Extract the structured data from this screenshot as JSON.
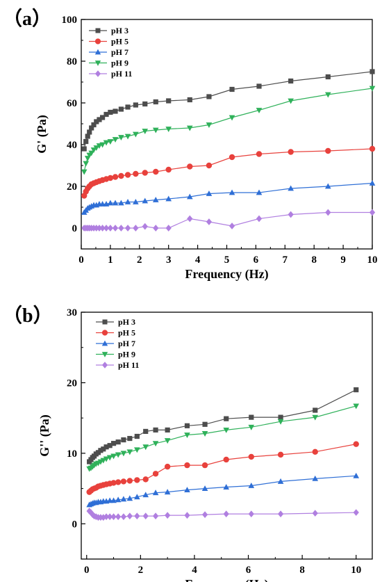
{
  "chart_data": [
    {
      "type": "line",
      "panel_label": "（a）",
      "xlabel": "Frequency (Hz)",
      "ylabel": "G' (Pa)",
      "xlim": [
        0,
        10
      ],
      "ylim": [
        -10,
        100
      ],
      "xticks": [
        "0",
        "1",
        "2",
        "3",
        "4",
        "5",
        "6",
        "7",
        "8",
        "9",
        "10"
      ],
      "yticks": [
        "0",
        "20",
        "40",
        "60",
        "80",
        "100"
      ],
      "legend_position": "top-left",
      "grid": false,
      "series": [
        {
          "name": "pH 3",
          "color": "#4d4d4d",
          "marker": "square",
          "x": [
            0.1,
            0.16,
            0.22,
            0.28,
            0.35,
            0.43,
            0.52,
            0.62,
            0.73,
            0.86,
            1.0,
            1.17,
            1.37,
            1.6,
            1.87,
            2.19,
            2.56,
            3.0,
            3.73,
            4.39,
            5.18,
            6.11,
            7.2,
            8.48,
            10.0
          ],
          "y": [
            38.0,
            41.5,
            44.0,
            46.0,
            48.0,
            49.5,
            51.0,
            52.0,
            53.0,
            54.5,
            55.5,
            56.0,
            57.0,
            58.0,
            59.0,
            59.5,
            60.5,
            61.0,
            61.5,
            63.0,
            66.5,
            68.0,
            70.5,
            72.5,
            75.0
          ]
        },
        {
          "name": "pH 5",
          "color": "#e8413c",
          "marker": "circle",
          "x": [
            0.1,
            0.16,
            0.22,
            0.28,
            0.35,
            0.43,
            0.52,
            0.62,
            0.73,
            0.86,
            1.0,
            1.17,
            1.37,
            1.6,
            1.87,
            2.19,
            2.56,
            3.0,
            3.73,
            4.39,
            5.18,
            6.11,
            7.2,
            8.48,
            10.0
          ],
          "y": [
            15.5,
            17.5,
            19.0,
            20.0,
            21.0,
            21.5,
            22.0,
            22.5,
            23.0,
            23.5,
            24.0,
            24.5,
            25.0,
            25.5,
            26.0,
            26.5,
            27.0,
            28.0,
            29.5,
            30.0,
            34.0,
            35.5,
            36.5,
            37.0,
            38.0
          ]
        },
        {
          "name": "pH 7",
          "color": "#2f6fd6",
          "marker": "triangle-up",
          "x": [
            0.1,
            0.16,
            0.22,
            0.28,
            0.35,
            0.43,
            0.52,
            0.62,
            0.73,
            0.86,
            1.0,
            1.17,
            1.37,
            1.6,
            1.87,
            2.19,
            2.56,
            3.0,
            3.73,
            4.39,
            5.18,
            6.11,
            7.2,
            8.48,
            10.0
          ],
          "y": [
            7.5,
            8.5,
            9.5,
            10.0,
            10.5,
            11.0,
            11.0,
            11.5,
            11.5,
            11.5,
            12.0,
            12.0,
            12.0,
            12.5,
            12.5,
            13.0,
            13.5,
            14.0,
            15.0,
            16.5,
            17.0,
            17.0,
            19.0,
            20.0,
            21.5
          ]
        },
        {
          "name": "pH 9",
          "color": "#2fb15a",
          "marker": "triangle-down",
          "x": [
            0.1,
            0.16,
            0.22,
            0.28,
            0.35,
            0.43,
            0.52,
            0.62,
            0.73,
            0.86,
            1.0,
            1.17,
            1.37,
            1.6,
            1.87,
            2.19,
            2.56,
            3.0,
            3.73,
            4.39,
            5.18,
            6.11,
            7.2,
            8.48,
            10.0
          ],
          "y": [
            27.0,
            31.0,
            33.5,
            35.0,
            36.0,
            37.5,
            38.5,
            39.5,
            40.0,
            41.0,
            41.5,
            42.5,
            43.5,
            44.0,
            45.0,
            46.5,
            47.0,
            47.5,
            48.0,
            49.5,
            53.0,
            56.5,
            61.0,
            64.0,
            67.0
          ]
        },
        {
          "name": "pH 11",
          "color": "#b07fe0",
          "marker": "diamond",
          "x": [
            0.1,
            0.16,
            0.22,
            0.28,
            0.35,
            0.43,
            0.52,
            0.62,
            0.73,
            0.86,
            1.0,
            1.17,
            1.37,
            1.6,
            1.87,
            2.19,
            2.56,
            3.0,
            3.73,
            4.39,
            5.18,
            6.11,
            7.2,
            8.48,
            10.0
          ],
          "y": [
            0.0,
            0.0,
            0.0,
            0.0,
            0.0,
            0.0,
            0.0,
            0.0,
            0.0,
            0.0,
            0.0,
            0.0,
            0.0,
            0.0,
            0.0,
            0.8,
            0.0,
            0.0,
            4.5,
            3.0,
            1.0,
            4.5,
            6.5,
            7.5,
            7.5
          ]
        }
      ]
    },
    {
      "type": "line",
      "panel_label": "（b）",
      "xlabel": "Frequency (Hz)",
      "ylabel": "G'' (Pa)",
      "xlim": [
        -0.2,
        10.6
      ],
      "ylim": [
        -5,
        30
      ],
      "xticks": [
        "0",
        "2",
        "4",
        "6",
        "8",
        "10"
      ],
      "yticks": [
        "0",
        "10",
        "20",
        "30"
      ],
      "legend_position": "top-left",
      "grid": false,
      "series": [
        {
          "name": "pH 3",
          "color": "#4d4d4d",
          "marker": "square",
          "x": [
            0.1,
            0.16,
            0.22,
            0.28,
            0.35,
            0.43,
            0.52,
            0.62,
            0.73,
            0.86,
            1.0,
            1.17,
            1.37,
            1.6,
            1.87,
            2.19,
            2.56,
            3.0,
            3.73,
            4.39,
            5.18,
            6.11,
            7.2,
            8.48,
            10.0
          ],
          "y": [
            8.8,
            9.1,
            9.4,
            9.6,
            9.9,
            10.1,
            10.4,
            10.6,
            10.9,
            11.1,
            11.4,
            11.6,
            11.9,
            12.1,
            12.4,
            13.1,
            13.3,
            13.3,
            13.9,
            14.1,
            14.9,
            15.1,
            15.1,
            16.1,
            19.0
          ]
        },
        {
          "name": "pH 5",
          "color": "#e8413c",
          "marker": "circle",
          "x": [
            0.1,
            0.16,
            0.22,
            0.28,
            0.35,
            0.43,
            0.52,
            0.62,
            0.73,
            0.86,
            1.0,
            1.17,
            1.37,
            1.6,
            1.87,
            2.19,
            2.56,
            3.0,
            3.73,
            4.39,
            5.18,
            6.11,
            7.2,
            8.48,
            10.0
          ],
          "y": [
            4.5,
            4.7,
            4.9,
            5.0,
            5.1,
            5.3,
            5.4,
            5.5,
            5.6,
            5.7,
            5.8,
            5.9,
            6.0,
            6.1,
            6.2,
            6.3,
            7.1,
            8.1,
            8.3,
            8.3,
            9.1,
            9.5,
            9.8,
            10.2,
            11.3
          ]
        },
        {
          "name": "pH 7",
          "color": "#2f6fd6",
          "marker": "triangle-up",
          "x": [
            0.1,
            0.16,
            0.22,
            0.28,
            0.35,
            0.43,
            0.52,
            0.62,
            0.73,
            0.86,
            1.0,
            1.17,
            1.37,
            1.6,
            1.87,
            2.19,
            2.56,
            3.0,
            3.73,
            4.39,
            5.18,
            6.11,
            7.2,
            8.48,
            10.0
          ],
          "y": [
            2.7,
            2.8,
            2.9,
            3.0,
            3.0,
            3.1,
            3.1,
            3.2,
            3.2,
            3.3,
            3.3,
            3.4,
            3.5,
            3.6,
            3.8,
            4.1,
            4.4,
            4.5,
            4.8,
            5.0,
            5.2,
            5.4,
            6.0,
            6.4,
            6.8
          ]
        },
        {
          "name": "pH 9",
          "color": "#2fb15a",
          "marker": "triangle-down",
          "x": [
            0.1,
            0.16,
            0.22,
            0.28,
            0.35,
            0.43,
            0.52,
            0.62,
            0.73,
            0.86,
            1.0,
            1.17,
            1.37,
            1.6,
            1.87,
            2.19,
            2.56,
            3.0,
            3.73,
            4.39,
            5.18,
            6.11,
            7.2,
            8.48,
            10.0
          ],
          "y": [
            7.8,
            7.9,
            8.1,
            8.3,
            8.5,
            8.6,
            8.8,
            9.0,
            9.2,
            9.4,
            9.6,
            9.8,
            10.0,
            10.2,
            10.5,
            10.9,
            11.4,
            11.8,
            12.6,
            12.8,
            13.3,
            13.7,
            14.5,
            15.1,
            16.7
          ]
        },
        {
          "name": "pH 11",
          "color": "#b07fe0",
          "marker": "diamond",
          "x": [
            0.1,
            0.16,
            0.22,
            0.28,
            0.35,
            0.43,
            0.52,
            0.62,
            0.73,
            0.86,
            1.0,
            1.17,
            1.37,
            1.6,
            1.87,
            2.19,
            2.56,
            3.0,
            3.73,
            4.39,
            5.18,
            6.11,
            7.2,
            8.48,
            10.0
          ],
          "y": [
            1.8,
            1.6,
            1.3,
            1.1,
            1.0,
            0.9,
            0.9,
            0.9,
            1.0,
            1.0,
            1.0,
            1.0,
            1.0,
            1.1,
            1.1,
            1.1,
            1.1,
            1.2,
            1.2,
            1.3,
            1.4,
            1.4,
            1.4,
            1.5,
            1.6
          ]
        }
      ]
    }
  ]
}
